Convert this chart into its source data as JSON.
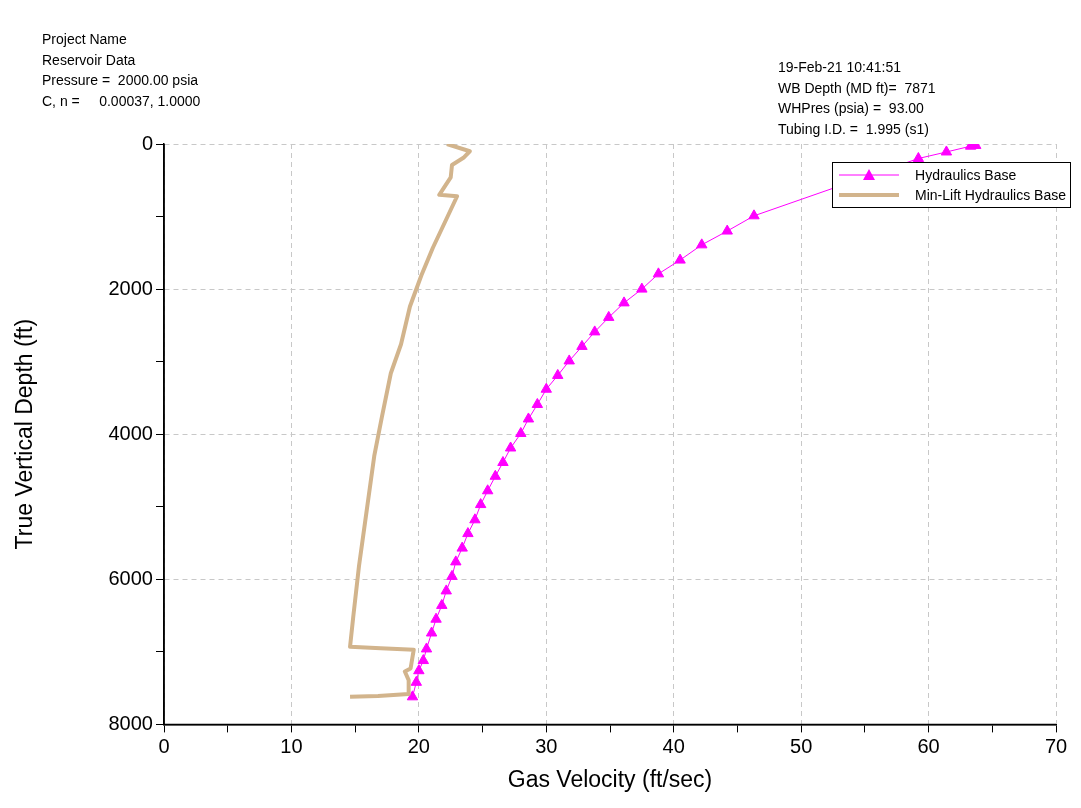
{
  "chart_data": {
    "type": "line",
    "xlabel": "Gas Velocity (ft/sec)",
    "ylabel": "True Vertical Depth (ft)",
    "annotations": [
      "Project Name\nReservoir Data\nPressure =  2000.00 psia\nC, n =     0.00037, 1.0000",
      "19-Feb-21 10:41:51\nWB Depth (MD ft)=  7871\nWHPres (psia) =  93.00\nTubing I.D. =  1.995 (s1)"
    ],
    "xlim": [
      0,
      70
    ],
    "xticks": [
      0,
      {
        "value": 5,
        "label": null
      },
      10,
      {
        "value": 15,
        "label": null
      },
      20,
      {
        "value": 25,
        "label": null
      },
      30,
      {
        "value": 35,
        "label": null
      },
      40,
      {
        "value": 45,
        "label": null
      },
      50,
      {
        "value": 55,
        "label": null
      },
      60,
      {
        "value": 65,
        "label": null
      },
      70
    ],
    "ylim": [
      8000,
      0
    ],
    "yticks": [
      0,
      {
        "value": 1000,
        "label": null
      },
      2000,
      {
        "value": 3000,
        "label": null
      },
      4000,
      {
        "value": 5000,
        "label": null
      },
      6000,
      {
        "value": 7000,
        "label": null
      },
      8000
    ],
    "grid": true,
    "legend": "top right",
    "series": [
      {
        "name": "Hydraulics Base",
        "color": "#ff00ff",
        "marker": "triangle",
        "line_style": "solid",
        "x": [
          63.7,
          63.3,
          61.4,
          59.2,
          46.3,
          44.2,
          42.2,
          40.5,
          38.8,
          37.5,
          36.1,
          34.9,
          33.8,
          32.8,
          31.8,
          30.9,
          30.0,
          29.3,
          28.6,
          28.0,
          27.2,
          26.6,
          26.0,
          25.4,
          24.85,
          24.4,
          23.85,
          23.4,
          22.9,
          22.6,
          22.15,
          21.8,
          21.35,
          21.0,
          20.6,
          20.35,
          20.0,
          19.8,
          19.5
        ],
        "values": [
          20,
          30,
          110,
          200,
          990,
          1200,
          1390,
          1600,
          1790,
          2000,
          2190,
          2390,
          2590,
          2790,
          2990,
          3190,
          3380,
          3590,
          3790,
          3990,
          4190,
          4390,
          4580,
          4780,
          4970,
          5180,
          5370,
          5570,
          5760,
          5960,
          6160,
          6360,
          6550,
          6740,
          6960,
          7120,
          7260,
          7420,
          7620
        ]
      },
      {
        "name": "Min-Lift Hydraulics Base",
        "color": "#d2b48c",
        "marker": "none",
        "line_style": "solid",
        "x": [
          22.2,
          24.0,
          23.5,
          22.6,
          22.5,
          21.6,
          23.0,
          22.2,
          21.1,
          20.2,
          19.3,
          18.6,
          17.8,
          17.1,
          16.5,
          15.9,
          15.3,
          14.85,
          14.6,
          17.0,
          19.6,
          19.35,
          18.9,
          19.2,
          19.2,
          16.8,
          14.6
        ],
        "values": [
          0,
          100,
          190,
          290,
          460,
          700,
          720,
          1020,
          1430,
          1810,
          2240,
          2760,
          3160,
          3760,
          4300,
          5060,
          5820,
          6520,
          6930,
          6950,
          6970,
          7230,
          7270,
          7390,
          7580,
          7610,
          7620
        ]
      }
    ]
  }
}
